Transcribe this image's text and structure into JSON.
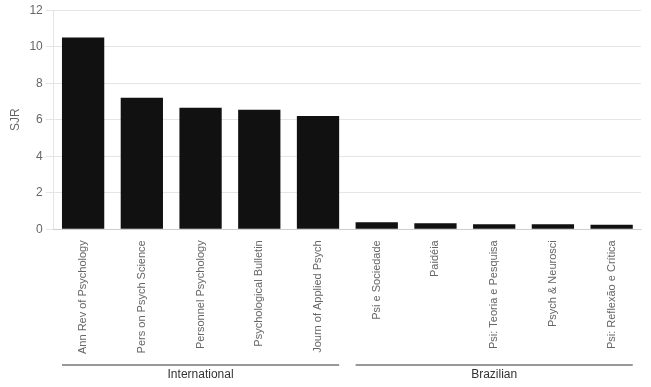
{
  "chart_data": {
    "type": "bar",
    "categories": [
      "Ann Rev of Psychology",
      "Pers on Psych Science",
      "Personnel Psychology",
      "Psychological Bulletin",
      "Journ of Applied Psych",
      "Psi e Sociedade",
      "Paidéia",
      "Psi: Teoria e Pesquisa",
      "Psych & Neurosci",
      "Psi: Reflexão e Crítica"
    ],
    "values": [
      10.5,
      7.2,
      6.65,
      6.55,
      6.2,
      0.38,
      0.33,
      0.28,
      0.28,
      0.25
    ],
    "color": "#111111",
    "ylabel": "SJR",
    "ylim": [
      0,
      12
    ],
    "yticks": [
      0,
      2,
      4,
      6,
      8,
      10,
      12
    ],
    "grid": true,
    "annotations": [
      {
        "text": "International",
        "from": "Ann Rev of Psychology",
        "to": "Journ of Applied Psych"
      },
      {
        "text": "Brazilian",
        "from": "Psi e Sociedade",
        "to": "Psi: Reflexão e Crítica"
      }
    ]
  }
}
